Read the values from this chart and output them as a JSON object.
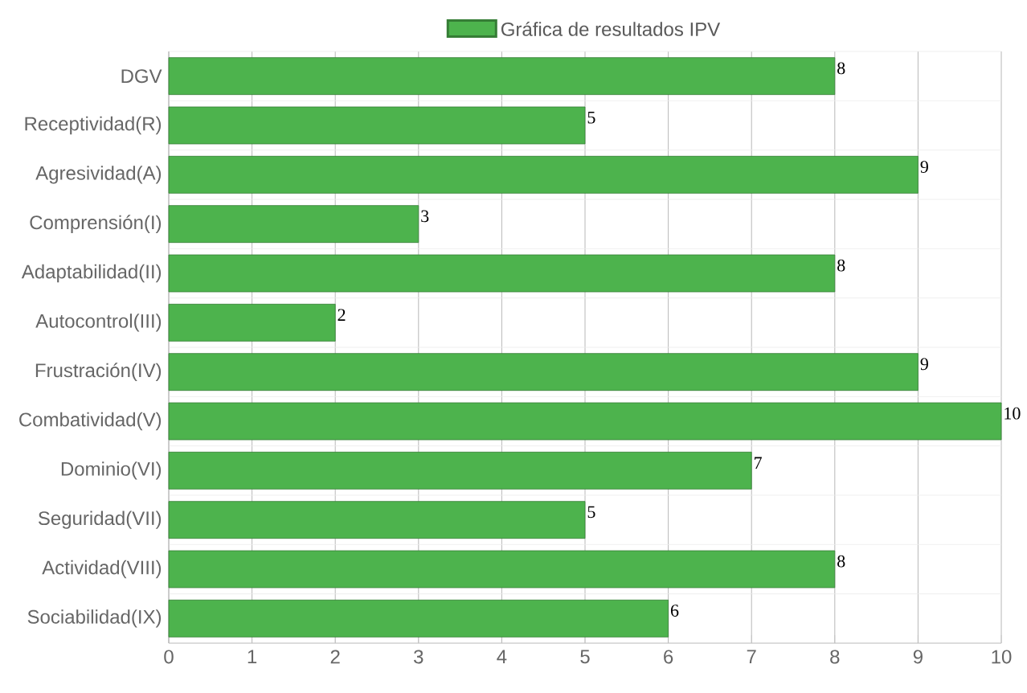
{
  "chart_data": {
    "type": "bar",
    "orientation": "horizontal",
    "categories": [
      "DGV",
      "Receptividad(R)",
      "Agresividad(A)",
      "Comprensión(I)",
      "Adaptabilidad(II)",
      "Autocontrol(III)",
      "Frustración(IV)",
      "Combatividad(V)",
      "Dominio(VI)",
      "Seguridad(VII)",
      "Actividad(VIII)",
      "Sociabilidad(IX)"
    ],
    "series": [
      {
        "name": "Gráfica de resultados IPV",
        "color": "#4db34d",
        "values": [
          8,
          5,
          9,
          3,
          8,
          2,
          9,
          10,
          7,
          5,
          8,
          6
        ]
      }
    ],
    "xlim": [
      0,
      10
    ],
    "xticks": [
      0,
      1,
      2,
      3,
      4,
      5,
      6,
      7,
      8,
      9,
      10
    ],
    "grid": true,
    "legend": "top",
    "data_labels": true
  }
}
